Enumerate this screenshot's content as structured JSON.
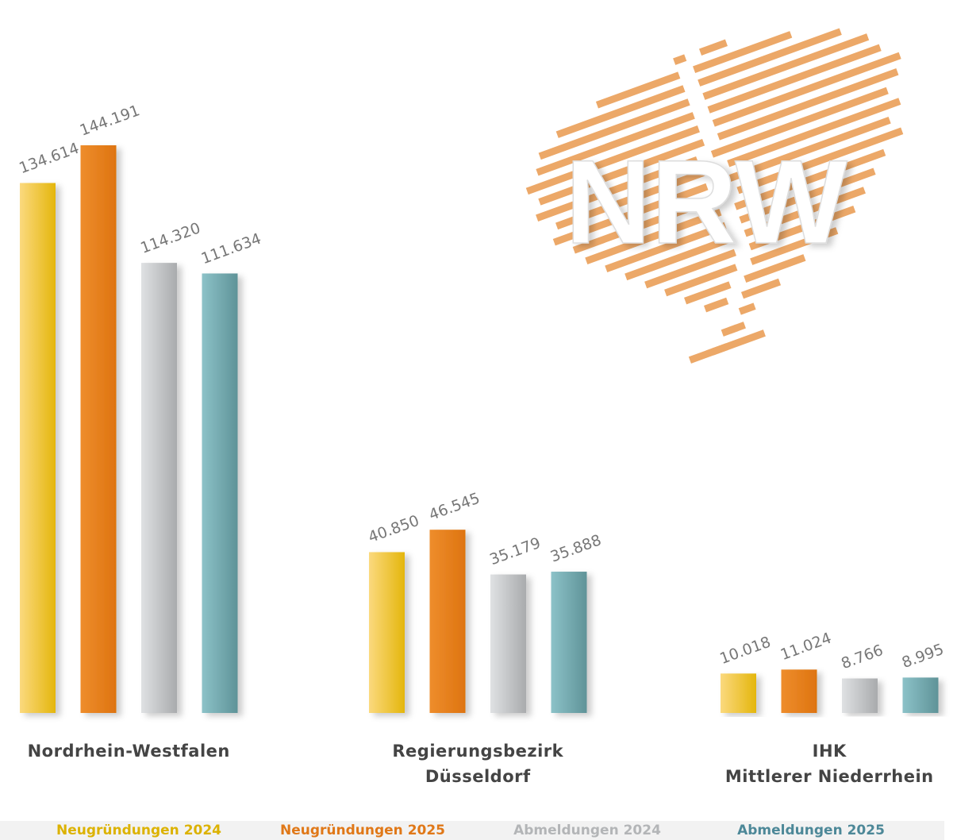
{
  "chart_data": {
    "type": "bar",
    "logo_text": "NRW",
    "categories": [
      "Nordrhein-Westfalen",
      "Regierungsbezirk\nDüsseldorf",
      "IHK\nMittlerer Niederrhein"
    ],
    "series": [
      {
        "name": "Neugründungen 2024",
        "color": "#eebf2a",
        "values": [
          134614,
          40850,
          10018
        ],
        "value_labels": [
          "134.614",
          "40.850",
          "10.018"
        ]
      },
      {
        "name": "Neugründungen 2025",
        "color": "#e67e1c",
        "values": [
          144191,
          46545,
          11024
        ],
        "value_labels": [
          "144.191",
          "46.545",
          "11.024"
        ]
      },
      {
        "name": "Abmeldungen 2024",
        "color": "#bfc1c3",
        "values": [
          114320,
          35179,
          8766
        ],
        "value_labels": [
          "114.320",
          "35.179",
          "8.766"
        ]
      },
      {
        "name": "Abmeldungen 2025",
        "color": "#72aab0",
        "values": [
          111634,
          35888,
          8995
        ],
        "value_labels": [
          "111.634",
          "35.888",
          "8.995"
        ]
      }
    ]
  }
}
